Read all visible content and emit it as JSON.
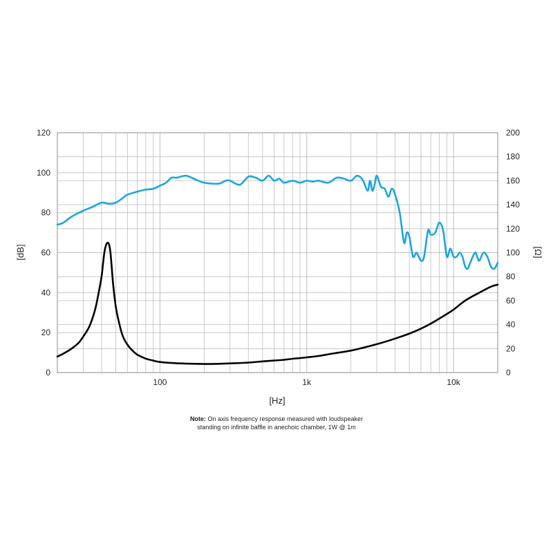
{
  "chart_data": {
    "type": "line",
    "title": "",
    "xlabel": "[Hz]",
    "ylabel_left": "[dB]",
    "ylabel_right": "[Ω]",
    "x_scale": "log",
    "xlim": [
      20,
      20000
    ],
    "ylim_left": [
      0,
      120
    ],
    "ylim_right": [
      0,
      200
    ],
    "x_ticks": [
      {
        "value": 100,
        "label": "100"
      },
      {
        "value": 1000,
        "label": "1k"
      },
      {
        "value": 10000,
        "label": "10k"
      }
    ],
    "y_ticks_left": [
      0,
      20,
      40,
      60,
      80,
      100,
      120
    ],
    "y_ticks_right": [
      0,
      20,
      40,
      60,
      80,
      100,
      120,
      140,
      160,
      180,
      200
    ],
    "grid": true,
    "legend": "none",
    "series": [
      {
        "axis": "left",
        "color": "#1aa6e0",
        "x": [
          20,
          22,
          25,
          30,
          35,
          40,
          45,
          50,
          55,
          60,
          70,
          80,
          90,
          100,
          110,
          120,
          130,
          150,
          170,
          200,
          250,
          280,
          300,
          350,
          400,
          450,
          500,
          550,
          600,
          650,
          700,
          800,
          900,
          1000,
          1100,
          1200,
          1400,
          1600,
          1800,
          2000,
          2200,
          2400,
          2600,
          2700,
          2800,
          2900,
          3000,
          3200,
          3400,
          3600,
          3800,
          4000,
          4300,
          4600,
          4800,
          5000,
          5300,
          5600,
          6000,
          6300,
          6700,
          7000,
          7500,
          8000,
          8500,
          9000,
          9500,
          10000,
          10500,
          11000,
          11500,
          12000,
          12500,
          13000,
          14000,
          14500,
          15000,
          16000,
          17000,
          18000,
          19000,
          20000
        ],
        "y": [
          74,
          75,
          78,
          81,
          83,
          85,
          84.5,
          85,
          87,
          89,
          90.5,
          91.5,
          92,
          93.5,
          95,
          97.5,
          97.5,
          98.5,
          97,
          95,
          94.5,
          96,
          96,
          94,
          98,
          97.5,
          96,
          98.5,
          96,
          97,
          95,
          96,
          95,
          96,
          95.5,
          96,
          95,
          97.5,
          97,
          96,
          98.5,
          96.5,
          91,
          96,
          91,
          94,
          98.5,
          93,
          92,
          88,
          92,
          89,
          80,
          65,
          70,
          68,
          58,
          60,
          56,
          58,
          71,
          69,
          70,
          75,
          71,
          58,
          62,
          58,
          58,
          60,
          58,
          53,
          52,
          55,
          60,
          58,
          56,
          60,
          58,
          53,
          52,
          55
        ]
      },
      {
        "axis": "left",
        "color": "#000000",
        "x": [
          20,
          22,
          25,
          28,
          30,
          33,
          36,
          38,
          40,
          41,
          42,
          43,
          44,
          45,
          46,
          47,
          48,
          50,
          53,
          56,
          60,
          65,
          70,
          80,
          90,
          100,
          120,
          150,
          200,
          250,
          300,
          400,
          500,
          600,
          700,
          800,
          1000,
          1200,
          1500,
          2000,
          2500,
          3000,
          4000,
          5000,
          6000,
          7000,
          8000,
          10000,
          12000,
          15000,
          18000,
          20000
        ],
        "y": [
          8,
          9.5,
          12,
          15,
          18,
          23,
          31,
          39,
          48,
          55,
          61,
          64,
          65,
          64,
          60,
          52,
          44,
          33,
          24,
          18,
          14,
          11,
          9,
          7,
          6,
          5.3,
          4.8,
          4.5,
          4.3,
          4.4,
          4.6,
          5,
          5.6,
          6,
          6.4,
          6.9,
          7.6,
          8.3,
          9.5,
          11,
          12.7,
          14.2,
          17,
          19.5,
          22,
          24.5,
          27,
          31.5,
          36,
          40,
          43,
          44
        ]
      }
    ]
  },
  "note": {
    "bold": "Note:",
    "line1": " On axis frequency response measured with loudspeaker",
    "line2": "standing on infinite baffle in anechoic chamber, 1W @ 1m"
  }
}
